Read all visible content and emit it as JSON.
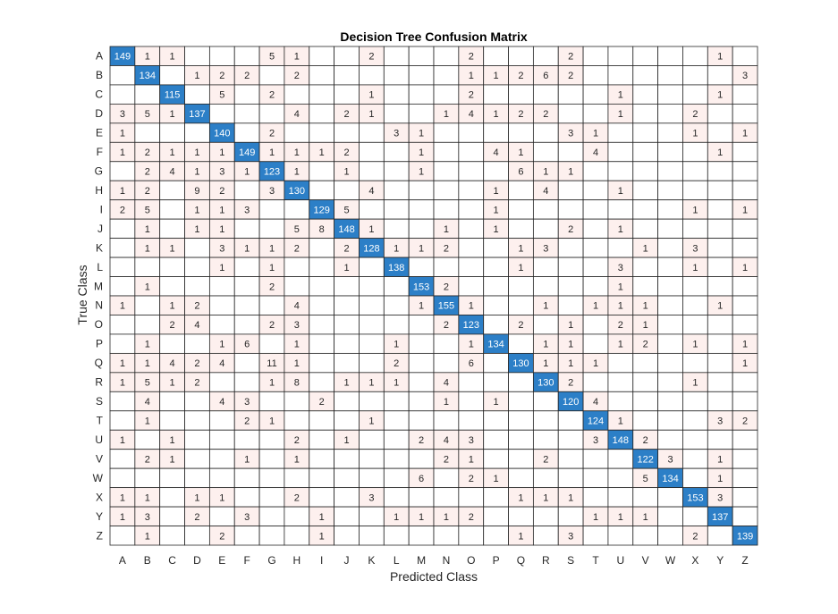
{
  "chart_data": {
    "type": "heatmap",
    "title": "Decision Tree Confusion Matrix",
    "xlabel": "Predicted Class",
    "ylabel": "True Class",
    "classes": [
      "A",
      "B",
      "C",
      "D",
      "E",
      "F",
      "G",
      "H",
      "I",
      "J",
      "K",
      "L",
      "M",
      "N",
      "O",
      "P",
      "Q",
      "R",
      "S",
      "T",
      "U",
      "V",
      "W",
      "X",
      "Y",
      "Z"
    ],
    "matrix": [
      [
        149,
        1,
        1,
        0,
        0,
        0,
        5,
        1,
        0,
        0,
        2,
        0,
        0,
        0,
        2,
        0,
        0,
        0,
        2,
        0,
        0,
        0,
        0,
        0,
        1,
        0
      ],
      [
        0,
        134,
        0,
        1,
        2,
        2,
        0,
        2,
        0,
        0,
        0,
        0,
        0,
        0,
        1,
        1,
        2,
        6,
        2,
        0,
        0,
        0,
        0,
        0,
        0,
        3
      ],
      [
        0,
        0,
        115,
        0,
        5,
        0,
        2,
        0,
        0,
        0,
        1,
        0,
        0,
        0,
        2,
        0,
        0,
        0,
        0,
        0,
        1,
        0,
        0,
        0,
        1,
        0
      ],
      [
        3,
        5,
        1,
        137,
        0,
        0,
        0,
        4,
        0,
        2,
        1,
        0,
        0,
        1,
        4,
        1,
        2,
        2,
        0,
        0,
        1,
        0,
        0,
        2,
        0,
        0
      ],
      [
        1,
        0,
        0,
        0,
        140,
        0,
        2,
        0,
        0,
        0,
        0,
        3,
        1,
        0,
        0,
        0,
        0,
        0,
        3,
        1,
        0,
        0,
        0,
        1,
        0,
        1
      ],
      [
        1,
        2,
        1,
        1,
        1,
        149,
        1,
        1,
        1,
        2,
        0,
        0,
        1,
        0,
        0,
        4,
        1,
        0,
        0,
        4,
        0,
        0,
        0,
        0,
        1,
        0
      ],
      [
        0,
        2,
        4,
        1,
        3,
        1,
        123,
        1,
        0,
        1,
        0,
        0,
        1,
        0,
        0,
        0,
        6,
        1,
        1,
        0,
        0,
        0,
        0,
        0,
        0,
        0
      ],
      [
        1,
        2,
        0,
        9,
        2,
        0,
        3,
        130,
        0,
        0,
        4,
        0,
        0,
        0,
        0,
        1,
        0,
        4,
        0,
        0,
        1,
        0,
        0,
        0,
        0,
        0
      ],
      [
        2,
        5,
        0,
        1,
        1,
        3,
        0,
        0,
        129,
        5,
        0,
        0,
        0,
        0,
        0,
        1,
        0,
        0,
        0,
        0,
        0,
        0,
        0,
        1,
        0,
        1
      ],
      [
        0,
        1,
        0,
        1,
        1,
        0,
        0,
        5,
        8,
        148,
        1,
        0,
        0,
        1,
        0,
        1,
        0,
        0,
        2,
        0,
        1,
        0,
        0,
        0,
        0,
        0
      ],
      [
        0,
        1,
        1,
        0,
        3,
        1,
        1,
        2,
        0,
        2,
        128,
        1,
        1,
        2,
        0,
        0,
        1,
        3,
        0,
        0,
        0,
        1,
        0,
        3,
        0,
        0
      ],
      [
        0,
        0,
        0,
        0,
        1,
        0,
        1,
        0,
        0,
        1,
        0,
        138,
        0,
        0,
        0,
        0,
        1,
        0,
        0,
        0,
        3,
        0,
        0,
        1,
        0,
        1
      ],
      [
        0,
        1,
        0,
        0,
        0,
        0,
        2,
        0,
        0,
        0,
        0,
        0,
        153,
        2,
        0,
        0,
        0,
        0,
        0,
        0,
        1,
        0,
        0,
        0,
        0,
        0
      ],
      [
        1,
        0,
        1,
        2,
        0,
        0,
        0,
        4,
        0,
        0,
        0,
        0,
        1,
        155,
        1,
        0,
        0,
        1,
        0,
        1,
        1,
        1,
        0,
        0,
        1,
        0
      ],
      [
        0,
        0,
        2,
        4,
        0,
        0,
        2,
        3,
        0,
        0,
        0,
        0,
        0,
        2,
        123,
        0,
        2,
        0,
        1,
        0,
        2,
        1,
        0,
        0,
        0,
        0
      ],
      [
        0,
        1,
        0,
        0,
        1,
        6,
        0,
        1,
        0,
        0,
        0,
        1,
        0,
        0,
        1,
        134,
        0,
        1,
        1,
        0,
        1,
        2,
        0,
        1,
        0,
        1
      ],
      [
        1,
        1,
        4,
        2,
        4,
        0,
        11,
        1,
        0,
        0,
        0,
        2,
        0,
        0,
        6,
        0,
        130,
        1,
        1,
        1,
        0,
        0,
        0,
        0,
        0,
        1
      ],
      [
        1,
        5,
        1,
        2,
        0,
        0,
        1,
        8,
        0,
        1,
        1,
        1,
        0,
        4,
        0,
        0,
        0,
        130,
        2,
        0,
        0,
        0,
        0,
        1,
        0,
        0
      ],
      [
        0,
        4,
        0,
        0,
        4,
        3,
        0,
        0,
        2,
        0,
        0,
        0,
        0,
        1,
        0,
        1,
        0,
        0,
        120,
        4,
        0,
        0,
        0,
        0,
        0,
        0
      ],
      [
        0,
        1,
        0,
        0,
        0,
        2,
        1,
        0,
        0,
        0,
        1,
        0,
        0,
        0,
        0,
        0,
        0,
        0,
        0,
        124,
        1,
        0,
        0,
        0,
        3,
        2
      ],
      [
        1,
        0,
        1,
        0,
        0,
        0,
        0,
        2,
        0,
        1,
        0,
        0,
        2,
        4,
        3,
        0,
        0,
        0,
        0,
        3,
        148,
        2,
        0,
        0,
        0,
        0
      ],
      [
        0,
        2,
        1,
        0,
        0,
        1,
        0,
        1,
        0,
        0,
        0,
        0,
        0,
        2,
        1,
        0,
        0,
        2,
        0,
        0,
        0,
        122,
        3,
        0,
        1,
        0
      ],
      [
        0,
        0,
        0,
        0,
        0,
        0,
        0,
        0,
        0,
        0,
        0,
        0,
        6,
        0,
        2,
        1,
        0,
        0,
        0,
        0,
        0,
        5,
        134,
        0,
        1,
        0
      ],
      [
        1,
        1,
        0,
        1,
        1,
        0,
        0,
        2,
        0,
        0,
        3,
        0,
        0,
        0,
        0,
        0,
        1,
        1,
        1,
        0,
        0,
        0,
        0,
        153,
        3,
        0
      ],
      [
        1,
        3,
        0,
        2,
        0,
        3,
        0,
        0,
        1,
        0,
        0,
        1,
        1,
        1,
        2,
        0,
        0,
        0,
        0,
        1,
        1,
        1,
        0,
        0,
        137,
        0
      ],
      [
        0,
        1,
        0,
        0,
        2,
        0,
        0,
        0,
        1,
        0,
        0,
        0,
        0,
        0,
        0,
        0,
        1,
        0,
        3,
        0,
        0,
        0,
        0,
        2,
        0,
        139
      ]
    ],
    "grid": true
  },
  "colors": {
    "diagonal": "#2c7fc7",
    "offdiagonal": "#fdf0ee",
    "gridline": "#262626",
    "diagonal_text": "#ffffff",
    "offdiagonal_text": "#262626"
  }
}
